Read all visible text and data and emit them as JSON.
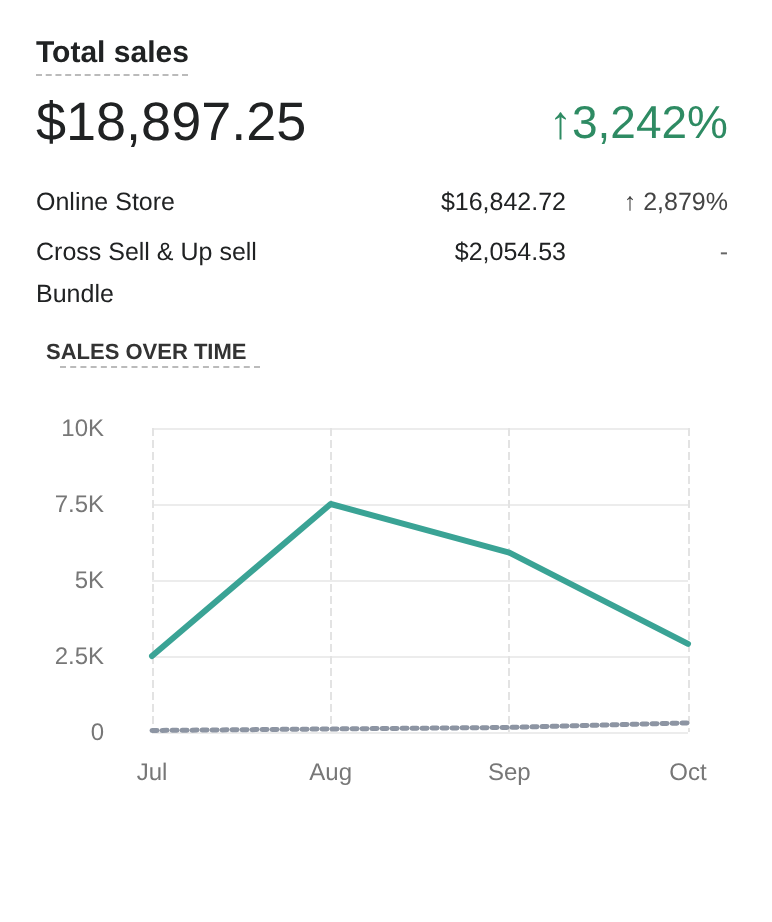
{
  "chart_data": [
    {
      "type": "other",
      "title": "Total sales",
      "annotations": [
        "$18,897.25",
        "↑3,242%",
        "Online Store",
        "$16,842.72",
        "↑ 2,879%",
        "Cross Sell & Up sell Bundle",
        "$2,054.53",
        "-"
      ]
    },
    {
      "type": "line",
      "title": "SALES OVER TIME",
      "categories": [
        "Jul",
        "Aug",
        "Sep",
        "Oct"
      ],
      "series": [
        {
          "color": "#3aa395",
          "values": [
            2500,
            7500,
            5900,
            2900
          ]
        },
        {
          "color": "#8d95a3",
          "line_style": "dotted",
          "values": [
            50,
            100,
            150,
            300
          ]
        }
      ],
      "ylim": [
        0,
        10000
      ],
      "yticks": [
        0,
        {
          "value": 2500,
          "label": "2.5K"
        },
        {
          "value": 5000,
          "label": "5K"
        },
        {
          "value": 7500,
          "label": "7.5K"
        },
        {
          "value": 10000,
          "label": "10K"
        }
      ],
      "grid": true,
      "marker": "none",
      "line_style": "solid"
    }
  ]
}
